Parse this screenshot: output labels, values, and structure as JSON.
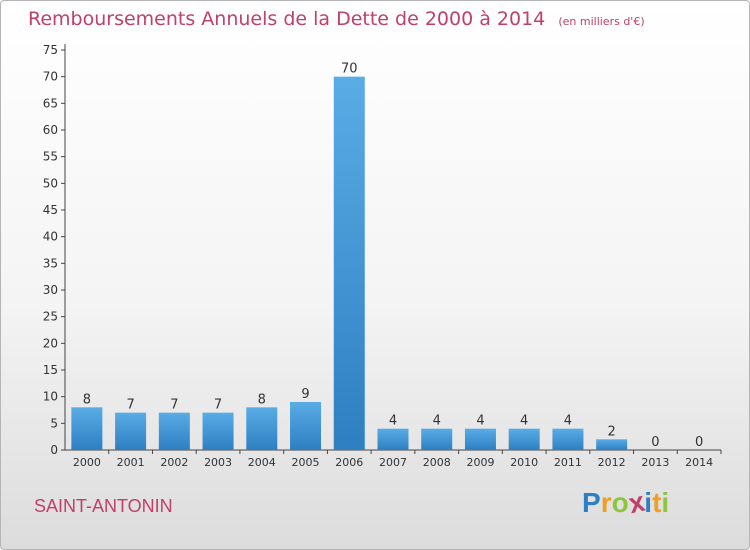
{
  "chart_data": {
    "type": "bar",
    "title": "Remboursements Annuels de la Dette de 2000 à 2014",
    "unit_label": "(en milliers d'€)",
    "categories": [
      "2000",
      "2001",
      "2002",
      "2003",
      "2004",
      "2005",
      "2006",
      "2007",
      "2008",
      "2009",
      "2010",
      "2011",
      "2012",
      "2013",
      "2014"
    ],
    "values": [
      8,
      7,
      7,
      7,
      8,
      9,
      70,
      4,
      4,
      4,
      4,
      4,
      2,
      0,
      0
    ],
    "yticks": [
      0,
      5,
      10,
      15,
      20,
      25,
      30,
      35,
      40,
      45,
      50,
      55,
      60,
      65,
      70,
      75
    ],
    "ylim": [
      0,
      75
    ],
    "xlabel": "",
    "ylabel": "",
    "grid": false,
    "bar_color_top": "#5aace6",
    "bar_color_bottom": "#2d7fc1"
  },
  "commune": "SAINT-ANTONIN",
  "logo": {
    "letters": [
      "P",
      "r",
      "o",
      "x",
      "i",
      "t",
      "i"
    ],
    "colors": [
      "#2d7fc1",
      "#f0a020",
      "#8cc63f",
      "#c0406a",
      "#2d7fc1",
      "#f0a020",
      "#8cc63f"
    ]
  },
  "colors": {
    "title": "#c0406a",
    "axis": "#444444",
    "text": "#333333"
  }
}
